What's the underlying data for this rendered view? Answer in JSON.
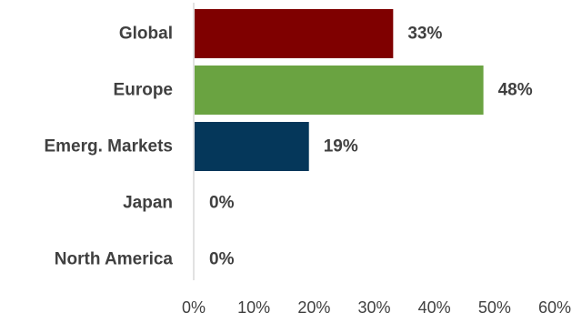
{
  "chart_data": {
    "type": "bar",
    "orientation": "horizontal",
    "categories": [
      "Global",
      "Europe",
      "Emerg. Markets",
      "Japan",
      "North America"
    ],
    "values": [
      33,
      48,
      19,
      0,
      0
    ],
    "value_labels": [
      "33%",
      "48%",
      "19%",
      "0%",
      "0%"
    ],
    "colors": [
      "#7f0000",
      "#6aa341",
      "#05375a",
      "#7f0000",
      "#7f0000"
    ],
    "xlim": [
      0,
      60
    ],
    "x_ticks": [
      0,
      10,
      20,
      30,
      40,
      50,
      60
    ],
    "x_tick_labels": [
      "0%",
      "10%",
      "20%",
      "30%",
      "40%",
      "50%",
      "60%"
    ],
    "grid": false,
    "legend": "none"
  }
}
